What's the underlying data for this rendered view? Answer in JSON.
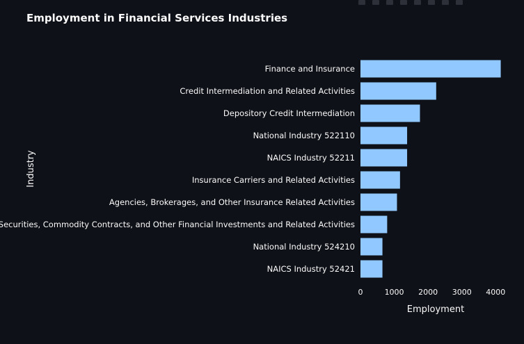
{
  "chart_data": {
    "type": "bar",
    "orientation": "horizontal",
    "title": "Employment in Financial Services Industries",
    "xlabel": "Employment",
    "ylabel": "Industry",
    "xlim": [
      0,
      4200
    ],
    "xticks": [
      0,
      1000,
      2000,
      3000,
      4000
    ],
    "grid": false,
    "bar_color": "#90c8ff",
    "background": "#0e1117",
    "categories": [
      "Finance and Insurance",
      "Credit Intermediation and Related Activities",
      "Depository Credit Intermediation",
      "National Industry 522110",
      "NAICS Industry 52211",
      "Insurance Carriers and Related Activities",
      "Agencies, Brokerages, and Other Insurance Related Activities",
      "Securities, Commodity Contracts, and Other Financial Investments and Related Activities",
      "National Industry 524210",
      "NAICS Industry 52421"
    ],
    "values": [
      4150,
      2240,
      1760,
      1380,
      1380,
      1170,
      1080,
      790,
      650,
      650
    ]
  }
}
